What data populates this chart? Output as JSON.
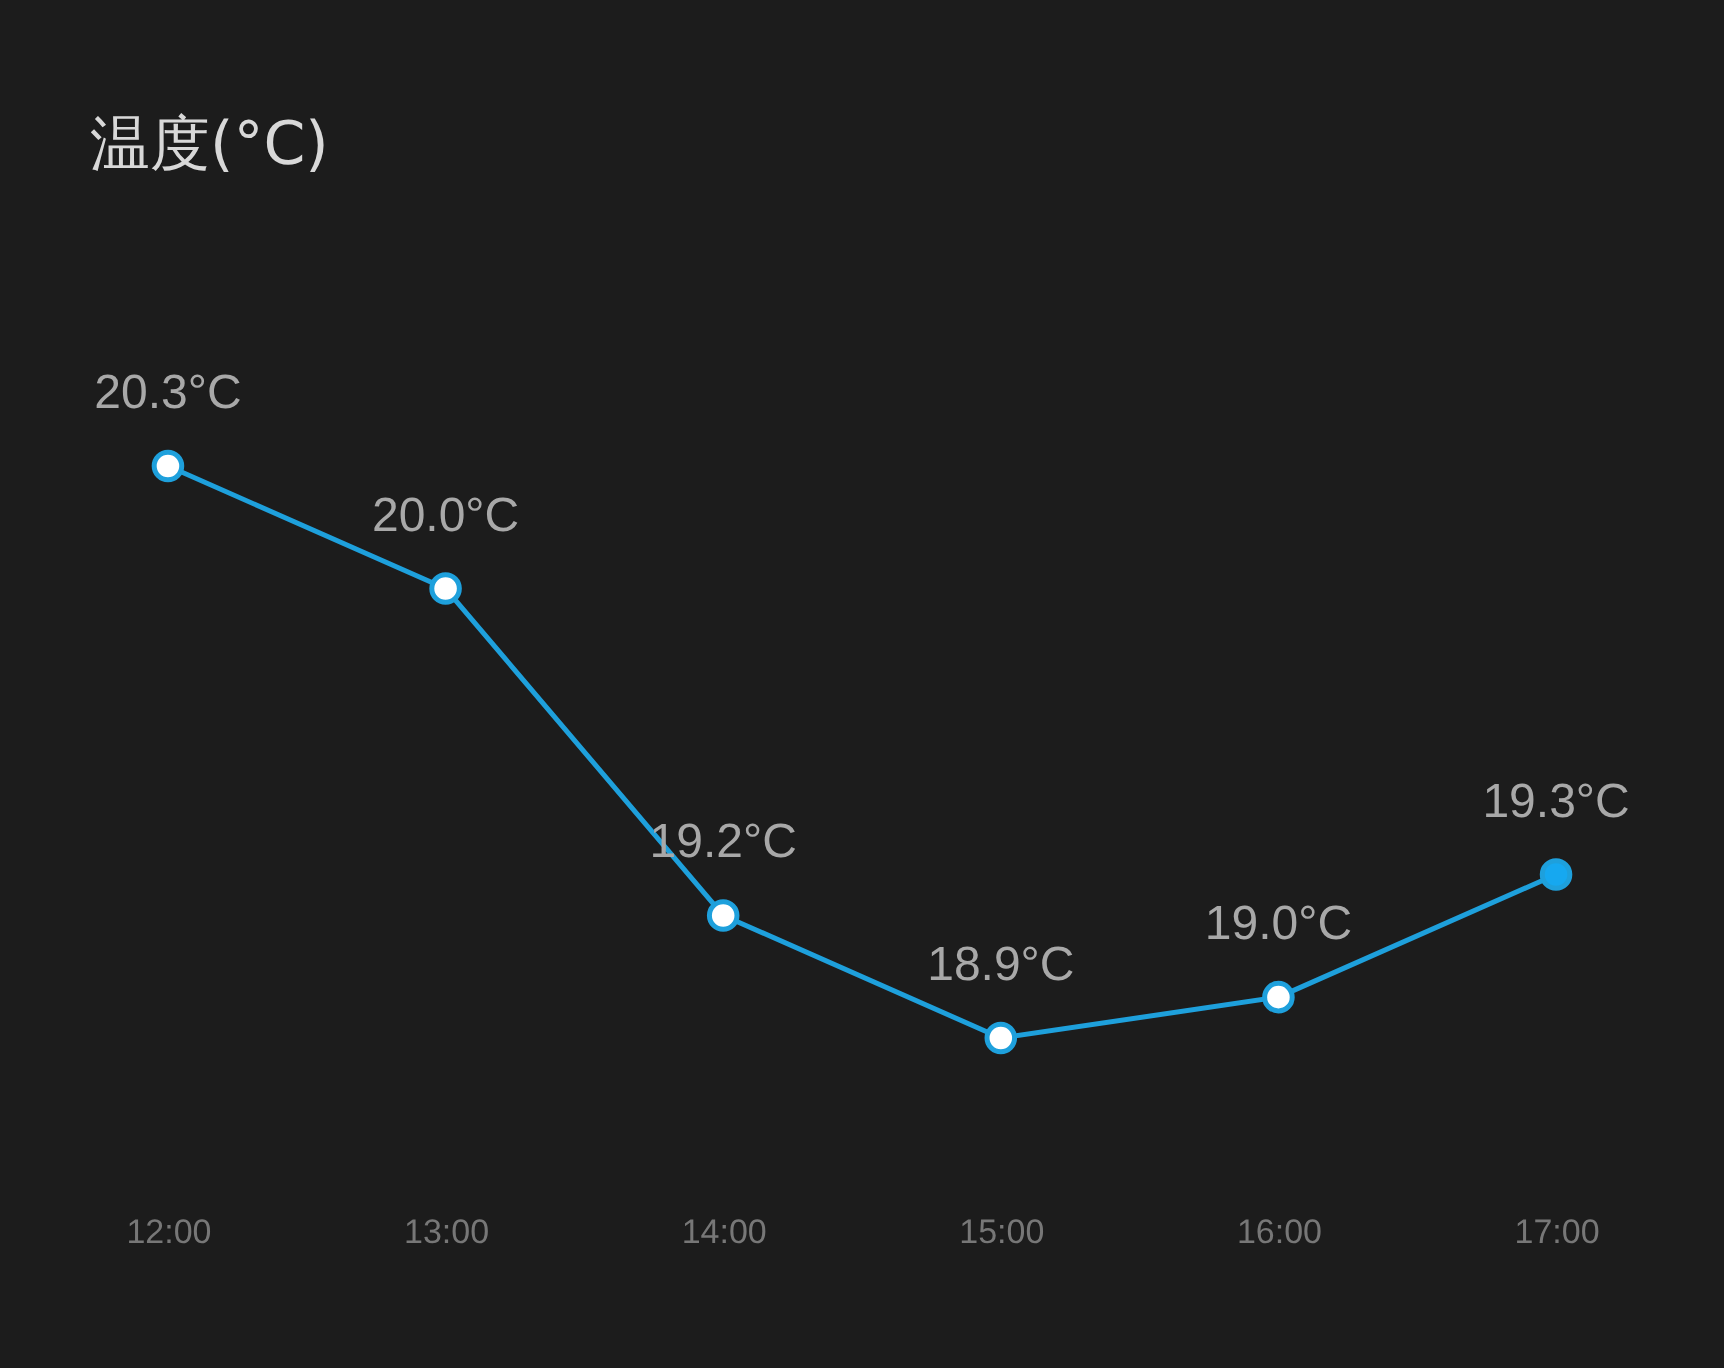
{
  "chart_data": {
    "type": "line",
    "title": "温度(°C)",
    "categories": [
      "12:00",
      "13:00",
      "14:00",
      "15:00",
      "16:00",
      "17:00"
    ],
    "series": [
      {
        "color": "#1ea0dc",
        "colors": [
          "#ffffff",
          "#ffffff",
          "#ffffff",
          "#ffffff",
          "#ffffff",
          "#16a8f0"
        ],
        "values": [
          20.3,
          20.0,
          19.2,
          18.9,
          19.0,
          19.3
        ],
        "value_labels": [
          "20.3°C",
          "20.0°C",
          "19.2°C",
          "18.9°C",
          "19.0°C",
          "19.3°C"
        ]
      }
    ],
    "marker": "circle",
    "grid": false
  }
}
